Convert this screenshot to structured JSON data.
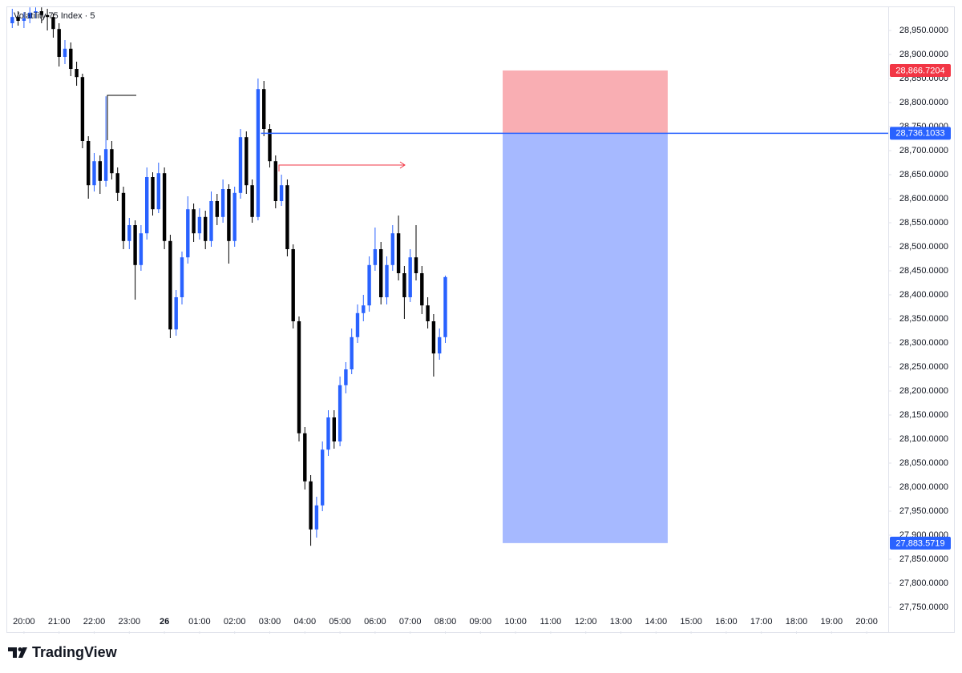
{
  "chart_data": {
    "type": "candlestick",
    "title": "Volatility 75 Index · 5",
    "up_color": "#2962ff",
    "down_color": "#000000",
    "x": [
      -20,
      -10,
      0,
      10,
      20,
      30,
      40,
      50,
      60,
      70,
      80,
      90,
      100,
      110,
      120,
      130,
      140,
      150,
      160,
      170,
      180,
      190,
      200,
      210,
      220,
      230,
      240,
      250,
      260,
      270,
      280,
      290,
      300,
      310,
      320,
      330,
      340,
      350,
      360,
      370,
      380,
      390,
      400,
      410,
      420,
      430,
      440,
      450,
      460,
      470,
      480,
      490,
      500,
      510,
      520,
      530,
      540,
      550,
      560,
      570,
      580,
      590,
      600,
      610,
      620,
      630,
      640,
      650,
      660,
      670,
      680,
      690,
      700,
      710,
      720
    ],
    "open": [
      28965,
      28978,
      28970,
      28975,
      28987,
      28990,
      28982,
      28978,
      28953,
      28895,
      28912,
      28870,
      28853,
      28720,
      28628,
      28678,
      28637,
      28703,
      28653,
      28612,
      28512,
      28545,
      28462,
      28528,
      28645,
      28578,
      28653,
      28512,
      28328,
      28395,
      28478,
      28578,
      28528,
      28562,
      28512,
      28595,
      28562,
      28620,
      28512,
      28612,
      28728,
      28628,
      28562,
      28828,
      28745,
      28678,
      28595,
      28628,
      28495,
      28345,
      28112,
      28012,
      27912,
      27962,
      28078,
      28145,
      28095,
      28212,
      28245,
      28312,
      28362,
      28378,
      28462,
      28495,
      28395,
      28462,
      28528,
      28445,
      28395,
      28478,
      28445,
      28378,
      28345,
      28278,
      28312
    ],
    "high": [
      28995,
      28990,
      28988,
      28998,
      28998,
      28998,
      28995,
      28985,
      28965,
      28930,
      28925,
      28885,
      28860,
      28730,
      28695,
      28690,
      28813,
      28720,
      28665,
      28625,
      28560,
      28555,
      28545,
      28665,
      28655,
      28675,
      28665,
      28525,
      28410,
      28490,
      28605,
      28590,
      28580,
      28575,
      28615,
      28610,
      28640,
      28630,
      28625,
      28745,
      28740,
      28640,
      28850,
      28845,
      28755,
      28690,
      28650,
      28640,
      28505,
      28355,
      28125,
      28025,
      27980,
      28095,
      28160,
      28160,
      28230,
      28260,
      28330,
      28380,
      28400,
      28480,
      28540,
      28510,
      28480,
      28545,
      28565,
      28460,
      28495,
      28545,
      28460,
      28395,
      28360,
      28330,
      28440
    ],
    "low": [
      28955,
      28960,
      28955,
      28965,
      28975,
      28965,
      28950,
      28935,
      28875,
      28880,
      28855,
      28835,
      28705,
      28600,
      28615,
      28610,
      28625,
      28640,
      28595,
      28495,
      28495,
      28390,
      28450,
      28515,
      28565,
      28570,
      28495,
      28310,
      28315,
      28380,
      28465,
      28510,
      28515,
      28495,
      28500,
      28545,
      28550,
      28465,
      28500,
      28600,
      28610,
      28550,
      28555,
      28730,
      28665,
      28580,
      28585,
      28480,
      28330,
      28095,
      27995,
      27878,
      27895,
      27950,
      28065,
      28080,
      28085,
      28195,
      28235,
      28300,
      28345,
      28365,
      28450,
      28380,
      28380,
      28450,
      28430,
      28350,
      28385,
      28430,
      28360,
      28330,
      28230,
      28265,
      28300
    ],
    "close": [
      28978,
      28970,
      28975,
      28987,
      28990,
      28982,
      28978,
      28953,
      28895,
      28912,
      28870,
      28853,
      28720,
      28628,
      28678,
      28637,
      28703,
      28653,
      28612,
      28512,
      28545,
      28462,
      28528,
      28645,
      28578,
      28653,
      28512,
      28328,
      28395,
      28478,
      28578,
      28528,
      28562,
      28512,
      28595,
      28562,
      28620,
      28512,
      28612,
      28728,
      28628,
      28562,
      28828,
      28745,
      28678,
      28595,
      28628,
      28495,
      28345,
      28112,
      28012,
      27912,
      27962,
      28078,
      28145,
      28095,
      28212,
      28245,
      28312,
      28362,
      28378,
      28462,
      28495,
      28395,
      28462,
      28528,
      28445,
      28395,
      28478,
      28445,
      28378,
      28345,
      28278,
      28312,
      28437
    ],
    "xlim": [
      -30,
      1470
    ],
    "ylim": [
      27700,
      29000
    ],
    "xticks": [
      {
        "value": 0,
        "label": "20:00"
      },
      {
        "value": 60,
        "label": "21:00"
      },
      {
        "value": 120,
        "label": "22:00"
      },
      {
        "value": 180,
        "label": "23:00"
      },
      {
        "value": 240,
        "label": "26"
      },
      {
        "value": 300,
        "label": "01:00"
      },
      {
        "value": 360,
        "label": "02:00"
      },
      {
        "value": 420,
        "label": "03:00"
      },
      {
        "value": 480,
        "label": "04:00"
      },
      {
        "value": 540,
        "label": "05:00"
      },
      {
        "value": 600,
        "label": "06:00"
      },
      {
        "value": 660,
        "label": "07:00"
      },
      {
        "value": 720,
        "label": "08:00"
      },
      {
        "value": 780,
        "label": "09:00"
      },
      {
        "value": 840,
        "label": "10:00"
      },
      {
        "value": 900,
        "label": "11:00"
      },
      {
        "value": 960,
        "label": "12:00"
      },
      {
        "value": 1020,
        "label": "13:00"
      },
      {
        "value": 1080,
        "label": "14:00"
      },
      {
        "value": 1140,
        "label": "15:00"
      },
      {
        "value": 1200,
        "label": "16:00"
      },
      {
        "value": 1260,
        "label": "17:00"
      },
      {
        "value": 1320,
        "label": "18:00"
      },
      {
        "value": 1380,
        "label": "19:00"
      },
      {
        "value": 1440,
        "label": "20:00"
      }
    ],
    "yticks": [
      {
        "value": 27750,
        "label": "27,750.0000"
      },
      {
        "value": 27800,
        "label": "27,800.0000"
      },
      {
        "value": 27850,
        "label": "27,850.0000"
      },
      {
        "value": 27900,
        "label": "27,900.0000"
      },
      {
        "value": 27950,
        "label": "27,950.0000"
      },
      {
        "value": 28000,
        "label": "28,000.0000"
      },
      {
        "value": 28050,
        "label": "28,050.0000"
      },
      {
        "value": 28100,
        "label": "28,100.0000"
      },
      {
        "value": 28150,
        "label": "28,150.0000"
      },
      {
        "value": 28200,
        "label": "28,200.0000"
      },
      {
        "value": 28250,
        "label": "28,250.0000"
      },
      {
        "value": 28300,
        "label": "28,300.0000"
      },
      {
        "value": 28350,
        "label": "28,350.0000"
      },
      {
        "value": 28400,
        "label": "28,400.0000"
      },
      {
        "value": 28450,
        "label": "28,450.0000"
      },
      {
        "value": 28500,
        "label": "28,500.0000"
      },
      {
        "value": 28550,
        "label": "28,550.0000"
      },
      {
        "value": 28600,
        "label": "28,600.0000"
      },
      {
        "value": 28650,
        "label": "28,650.0000"
      },
      {
        "value": 28700,
        "label": "28,700.0000"
      },
      {
        "value": 28750,
        "label": "28,750.0000"
      },
      {
        "value": 28800,
        "label": "28,800.0000"
      },
      {
        "value": 28850,
        "label": "28,850.0000"
      },
      {
        "value": 28900,
        "label": "28,900.0000"
      },
      {
        "value": 28950,
        "label": "28,950.0000"
      }
    ],
    "position": {
      "x_range": [
        818,
        1100
      ],
      "stop": {
        "value": 28866.7204,
        "label": "28,866.7204",
        "color": "#f23645",
        "fill": "#f9aeb3"
      },
      "entry": {
        "value": 28736.1033,
        "label": "28,736.1033",
        "color": "#2962ff",
        "line_from": 405
      },
      "target": {
        "value": 27883.5719,
        "label": "27,883.5719",
        "color": "#2962ff",
        "fill": "#a6b9ff"
      }
    }
  },
  "brand": "TradingView"
}
